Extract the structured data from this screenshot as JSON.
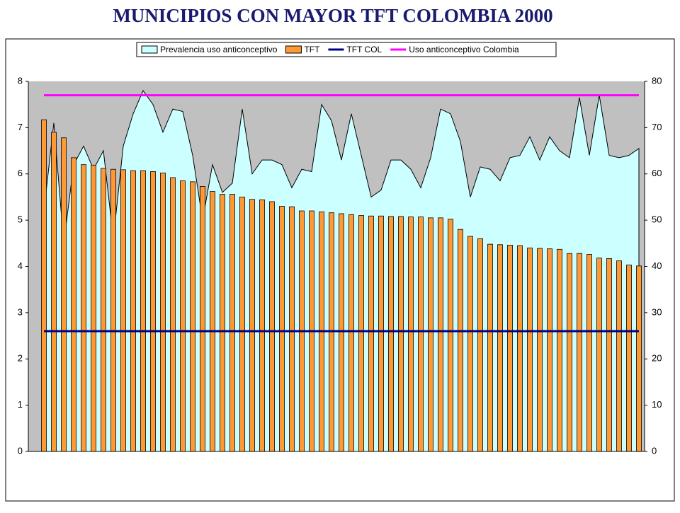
{
  "chart_data": {
    "type": "bar",
    "title": "MUNICIPIOS CON MAYOR TFT COLOMBIA 2000",
    "categories": [
      null,
      null,
      null,
      null,
      null,
      null,
      null,
      null,
      null,
      null,
      null,
      null,
      null,
      null,
      null,
      null,
      null,
      null,
      null,
      null,
      null,
      null,
      null,
      null,
      null,
      null,
      null,
      null,
      null,
      null,
      null,
      null,
      null,
      null,
      null,
      null,
      null,
      null,
      null,
      null,
      null,
      null,
      null,
      null,
      null,
      null,
      null,
      null,
      null,
      null,
      null,
      null,
      null,
      null,
      null,
      null,
      null,
      null,
      null,
      null,
      null
    ],
    "series": [
      {
        "name": "Prevalencia uso anticonceptivo",
        "type": "area",
        "axis": "y2",
        "color": "#ccffff",
        "values": [
          52,
          71,
          45,
          62,
          66,
          61,
          65,
          46,
          66,
          73,
          78,
          75,
          69,
          74,
          73.5,
          64,
          50,
          62,
          56,
          58,
          74,
          60,
          63,
          63,
          62,
          57,
          61,
          60.5,
          75,
          71.5,
          63,
          73,
          64,
          55,
          56.5,
          63,
          63,
          61,
          57,
          63.5,
          74,
          73,
          67,
          55,
          61.5,
          61,
          58.5,
          63.5,
          64,
          68,
          63,
          68,
          65,
          63.5,
          76.5,
          64,
          77,
          64,
          63.5,
          64,
          65.5
        ]
      },
      {
        "name": "TFT",
        "type": "bar",
        "color": "#ff9933",
        "values": [
          7.17,
          6.9,
          6.78,
          6.35,
          6.2,
          6.19,
          6.12,
          6.1,
          6.09,
          6.07,
          6.07,
          6.05,
          6.02,
          5.92,
          5.85,
          5.83,
          5.73,
          5.62,
          5.56,
          5.56,
          5.5,
          5.45,
          5.44,
          5.4,
          5.3,
          5.29,
          5.2,
          5.2,
          5.18,
          5.16,
          5.14,
          5.12,
          5.1,
          5.09,
          5.09,
          5.08,
          5.08,
          5.07,
          5.07,
          5.05,
          5.05,
          5.02,
          4.8,
          4.65,
          4.6,
          4.48,
          4.47,
          4.46,
          4.45,
          4.4,
          4.39,
          4.38,
          4.37,
          4.28,
          4.28,
          4.26,
          4.18,
          4.17,
          4.12,
          4.03,
          4.01
        ]
      },
      {
        "name": "TFT COL",
        "type": "line",
        "color": "#000080",
        "values": [
          2.6,
          2.6,
          2.6,
          2.6,
          2.6,
          2.6,
          2.6,
          2.6,
          2.6,
          2.6,
          2.6,
          2.6,
          2.6,
          2.6,
          2.6,
          2.6,
          2.6,
          2.6,
          2.6,
          2.6,
          2.6,
          2.6,
          2.6,
          2.6,
          2.6,
          2.6,
          2.6,
          2.6,
          2.6,
          2.6,
          2.6,
          2.6,
          2.6,
          2.6,
          2.6,
          2.6,
          2.6,
          2.6,
          2.6,
          2.6,
          2.6,
          2.6,
          2.6,
          2.6,
          2.6,
          2.6,
          2.6,
          2.6,
          2.6,
          2.6,
          2.6,
          2.6,
          2.6,
          2.6,
          2.6,
          2.6,
          2.6,
          2.6,
          2.6,
          2.6,
          2.6
        ]
      },
      {
        "name": "Uso anticonceptivo Colombia",
        "type": "line",
        "axis": "y2",
        "color": "#ff00ff",
        "values": [
          77,
          77,
          77,
          77,
          77,
          77,
          77,
          77,
          77,
          77,
          77,
          77,
          77,
          77,
          77,
          77,
          77,
          77,
          77,
          77,
          77,
          77,
          77,
          77,
          77,
          77,
          77,
          77,
          77,
          77,
          77,
          77,
          77,
          77,
          77,
          77,
          77,
          77,
          77,
          77,
          77,
          77,
          77,
          77,
          77,
          77,
          77,
          77,
          77,
          77,
          77,
          77,
          77,
          77,
          77,
          77,
          77,
          77,
          77,
          77,
          77
        ]
      }
    ],
    "ylim": [
      0,
      8
    ],
    "yticks": [
      0,
      1,
      2,
      3,
      4,
      5,
      6,
      7,
      8
    ],
    "y2lim": [
      0,
      80
    ],
    "y2ticks": [
      0,
      10,
      20,
      30,
      40,
      50,
      60,
      70,
      80
    ],
    "plot_background": "#c0c0c0",
    "legend": "top"
  }
}
